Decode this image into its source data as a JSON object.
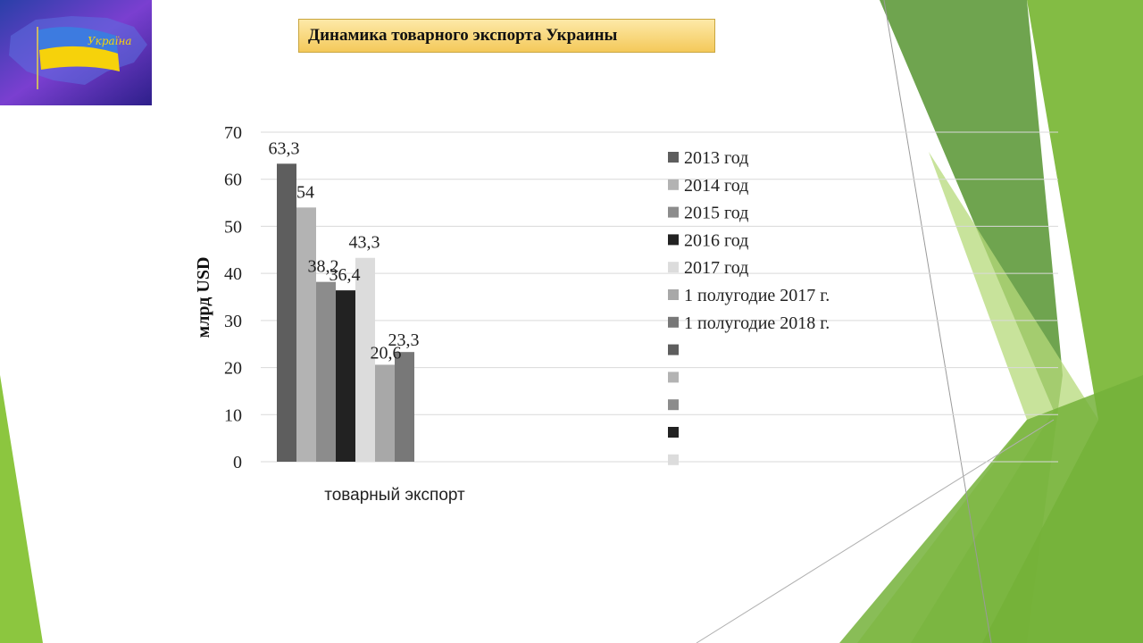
{
  "slide": {
    "title": "Динамика товарного экспорта Украины",
    "logo_text": "Україна",
    "logo_flag_colors": [
      "#2f6fd0",
      "#f6d20b"
    ]
  },
  "chart_data": {
    "type": "bar",
    "categories": [
      "товарный экспорт"
    ],
    "ylabel": "млрд USD",
    "xlabel": "",
    "ylim": [
      0,
      70
    ],
    "yticks": [
      0,
      10,
      20,
      30,
      40,
      50,
      60,
      70
    ],
    "grid": true,
    "legend_position": "right",
    "series": [
      {
        "name": "2013 год",
        "values": [
          63.3
        ],
        "label": "63,3",
        "color": "#5e5e5e"
      },
      {
        "name": "2014 год",
        "values": [
          54
        ],
        "label": "54",
        "color": "#b3b3b3"
      },
      {
        "name": "2015 год",
        "values": [
          38.2
        ],
        "label": "38,2",
        "color": "#8c8c8c"
      },
      {
        "name": "2016 год",
        "values": [
          36.4
        ],
        "label": "36,4",
        "color": "#222222"
      },
      {
        "name": "2017 год",
        "values": [
          43.3
        ],
        "label": "43,3",
        "color": "#dcdcdc"
      },
      {
        "name": "1 полугодие 2017 г.",
        "values": [
          20.6
        ],
        "label": "20,6",
        "color": "#a8a8a8"
      },
      {
        "name": "1 полугодие 2018 г.",
        "values": [
          23.3
        ],
        "label": "23,3",
        "color": "#787878"
      }
    ],
    "legend_extra_swatches": [
      "#5e5e5e",
      "#b3b3b3",
      "#8c8c8c",
      "#222222",
      "#dcdcdc"
    ]
  },
  "decor_colors": {
    "green_dark": "#5a9a3a",
    "green_mid": "#7cb83a",
    "green_light": "#a8d46a",
    "green_pale": "#d6ebb2"
  }
}
